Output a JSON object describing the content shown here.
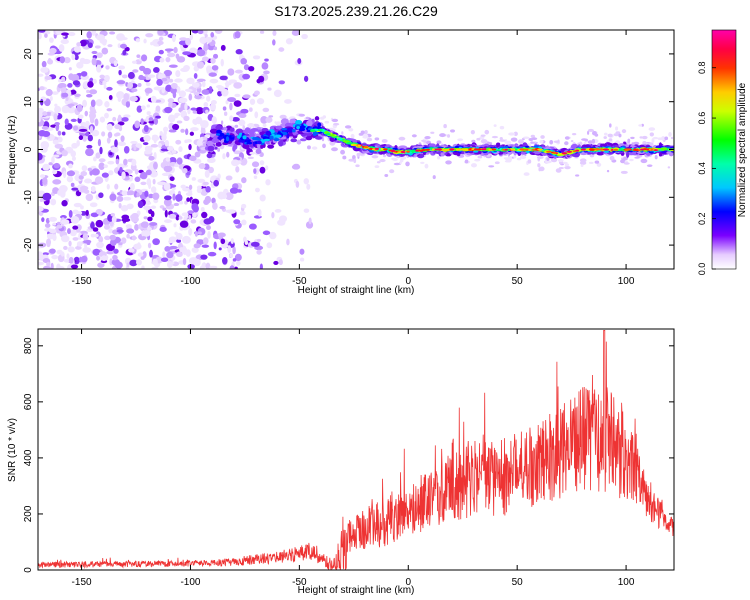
{
  "chart_data": [
    {
      "type": "heatmap",
      "title": "S173.2025.239.21.26.C29",
      "xlabel": "Height of straight line (km)",
      "ylabel": "Frequency (Hz)",
      "xlim": [
        -170,
        122
      ],
      "ylim": [
        -25,
        25
      ],
      "x_ticks": [
        -150,
        -100,
        -50,
        0,
        50,
        100
      ],
      "y_ticks": [
        -20,
        -10,
        0,
        10,
        20
      ],
      "colorbar": {
        "label": "Normalized spectral amplitude",
        "range": [
          0,
          0.95
        ],
        "ticks": [
          "0.0",
          "0.2",
          "0.4",
          "0.6",
          "0.8"
        ],
        "colors": [
          "#ffffff",
          "#7a00ff",
          "#0000ff",
          "#00ffff",
          "#00ff00",
          "#ffff00",
          "#ff0000",
          "#ff00aa"
        ]
      },
      "ridge": {
        "description_points": [
          [
            -90,
            3
          ],
          [
            -80,
            2.5
          ],
          [
            -70,
            2
          ],
          [
            -60,
            3
          ],
          [
            -50,
            4.5
          ],
          [
            -45,
            4
          ],
          [
            -40,
            4
          ],
          [
            -35,
            3
          ],
          [
            -30,
            2
          ],
          [
            -25,
            1
          ],
          [
            -20,
            0.5
          ],
          [
            -15,
            0
          ],
          [
            -10,
            0
          ],
          [
            -5,
            -0.5
          ],
          [
            0,
            -0.5
          ],
          [
            10,
            0
          ],
          [
            20,
            0
          ],
          [
            30,
            0
          ],
          [
            40,
            0
          ],
          [
            50,
            0
          ],
          [
            60,
            0
          ],
          [
            70,
            -1
          ],
          [
            80,
            0
          ],
          [
            90,
            0
          ],
          [
            100,
            0
          ],
          [
            110,
            0
          ],
          [
            122,
            0
          ]
        ]
      }
    },
    {
      "type": "line",
      "xlabel": "Height of straight line (km)",
      "ylabel": "SNR (10 * v/v)",
      "xlim": [
        -170,
        122
      ],
      "ylim": [
        0,
        860
      ],
      "x_ticks": [
        -150,
        -100,
        -50,
        0,
        50,
        100
      ],
      "y_ticks": [
        0,
        200,
        400,
        600,
        800
      ],
      "color": "#ee3333",
      "envelope": {
        "x": [
          -170,
          -150,
          -100,
          -80,
          -70,
          -60,
          -50,
          -45,
          -40,
          -35,
          -30,
          -20,
          -10,
          0,
          10,
          20,
          30,
          40,
          50,
          60,
          70,
          80,
          85,
          90,
          95,
          100,
          105,
          110,
          115,
          122
        ],
        "mean": [
          20,
          20,
          22,
          28,
          40,
          45,
          60,
          70,
          40,
          25,
          110,
          150,
          170,
          210,
          250,
          300,
          330,
          320,
          350,
          380,
          420,
          470,
          480,
          470,
          440,
          400,
          330,
          260,
          200,
          150
        ],
        "range": [
          20,
          20,
          20,
          25,
          35,
          40,
          55,
          60,
          40,
          30,
          120,
          140,
          160,
          180,
          200,
          230,
          260,
          250,
          260,
          280,
          300,
          330,
          360,
          360,
          320,
          280,
          200,
          140,
          100,
          60
        ]
      },
      "peak": {
        "x": 90,
        "y": 855
      }
    }
  ]
}
